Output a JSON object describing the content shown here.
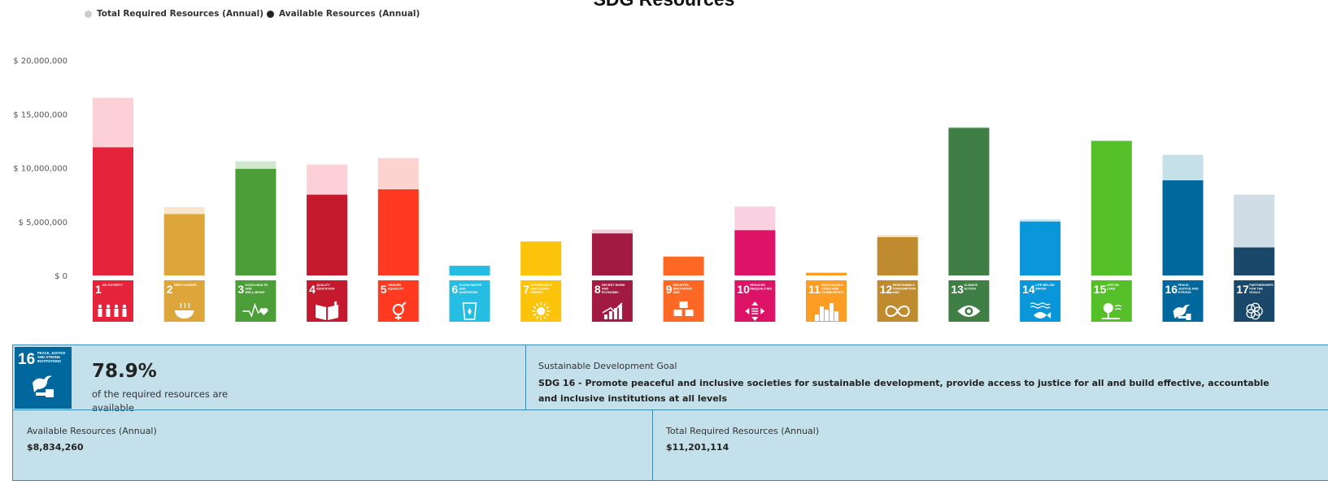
{
  "chart_data": {
    "type": "bar",
    "title": "SDG Resources",
    "legend": [
      {
        "name": "Total Required Resources (Annual)",
        "color": "#cccccc"
      },
      {
        "name": "Available Resources (Annual)",
        "color": "#222222"
      }
    ],
    "legend_placement": "top-left",
    "ylim": [
      0,
      20000000
    ],
    "y_ticks": [
      "$ 0",
      "$ 5,000,000",
      "$ 10,000,000",
      "$ 15,000,000",
      "$ 20,000,000"
    ],
    "grid": false,
    "categories": [
      {
        "num": "1",
        "label": "NO POVERTY",
        "icon": "family-icon",
        "color": "#e5243b",
        "light": "#fcd0d6",
        "total": 16500000,
        "available": 11900000
      },
      {
        "num": "2",
        "label": "ZERO HUNGER",
        "icon": "bowl-icon",
        "color": "#dda63a",
        "light": "#f8e6cc",
        "total": 6350000,
        "available": 5700000
      },
      {
        "num": "3",
        "label": "GOOD HEALTH AND WELL-BEING",
        "icon": "heartbeat-icon",
        "color": "#4c9f38",
        "light": "#cfe8cb",
        "total": 10600000,
        "available": 9900000
      },
      {
        "num": "4",
        "label": "QUALITY EDUCATION",
        "icon": "book-icon",
        "color": "#c5192d",
        "light": "#fcd0d6",
        "total": 10300000,
        "available": 7500000
      },
      {
        "num": "5",
        "label": "GENDER EQUALITY",
        "icon": "gender-icon",
        "color": "#ff3a21",
        "light": "#fdd3cf",
        "total": 10900000,
        "available": 8000000
      },
      {
        "num": "6",
        "label": "CLEAN WATER AND SANITATION",
        "icon": "water-icon",
        "color": "#26bde2",
        "light": "#c9eef8",
        "total": 900000,
        "available": 900000
      },
      {
        "num": "7",
        "label": "AFFORDABLE AND CLEAN ENERGY",
        "icon": "sun-icon",
        "color": "#fcc30b",
        "light": "#fef0c0",
        "total": 3150000,
        "available": 3150000
      },
      {
        "num": "8",
        "label": "DECENT WORK AND ECONOMIC GROWTH",
        "icon": "growth-icon",
        "color": "#a21942",
        "light": "#f4cdd8",
        "total": 4250000,
        "available": 3900000
      },
      {
        "num": "9",
        "label": "INDUSTRY, INNOVATION AND INFRASTRUCTURE",
        "icon": "cubes-icon",
        "color": "#fd6925",
        "light": "#fed6c3",
        "total": 1750000,
        "available": 1750000
      },
      {
        "num": "10",
        "label": "REDUCED INEQUALITIES",
        "icon": "arrows-icon",
        "color": "#dd1367",
        "light": "#fbd0e1",
        "total": 6400000,
        "available": 4200000
      },
      {
        "num": "11",
        "label": "SUSTAINABLE CITIES AND COMMUNITIES",
        "icon": "city-icon",
        "color": "#fd9d24",
        "light": "#fee5c6",
        "total": 250000,
        "available": 250000
      },
      {
        "num": "12",
        "label": "RESPONSIBLE CONSUMPTION AND PRODUCTION",
        "icon": "infinity-icon",
        "color": "#bf8b2e",
        "light": "#f2e2c3",
        "total": 3750000,
        "available": 3550000
      },
      {
        "num": "13",
        "label": "CLIMATE ACTION",
        "icon": "eye-icon",
        "color": "#3f7e44",
        "light": "#d4e6d5",
        "total": 13800000,
        "available": 13700000
      },
      {
        "num": "14",
        "label": "LIFE BELOW WATER",
        "icon": "fish-icon",
        "color": "#0a97d9",
        "light": "#c2e4f5",
        "total": 5200000,
        "available": 5000000
      },
      {
        "num": "15",
        "label": "LIFE ON LAND",
        "icon": "tree-icon",
        "color": "#56c02b",
        "light": "#d8f0cc",
        "total": 12500000,
        "available": 12500000
      },
      {
        "num": "16",
        "label": "PEACE, JUSTICE AND STRONG INSTITUTIONS",
        "icon": "dove-icon",
        "color": "#00689d",
        "light": "#c6e0ea",
        "total": 11201114,
        "available": 8834260
      },
      {
        "num": "17",
        "label": "PARTNERSHIPS FOR THE GOALS",
        "icon": "partnership-icon",
        "color": "#19486a",
        "light": "#d1dde6",
        "total": 7500000,
        "available": 2600000
      }
    ]
  },
  "panel": {
    "tile_num": "16",
    "tile_label": "PEACE, JUSTICE AND STRONG INSTITUTIONS",
    "percent": "78.9%",
    "percent_note": "of the required resources are available",
    "goal_heading": "Sustainable Development Goal",
    "goal_text": "SDG 16 - Promote peaceful and inclusive societies for sustainable development, provide access to justice for all and build effective, accountable and inclusive institutions at all levels",
    "available_label": "Available Resources (Annual)",
    "available_value": "$8,834,260",
    "required_label": "Total Required Resources (Annual)",
    "required_value": "$11,201,114"
  }
}
